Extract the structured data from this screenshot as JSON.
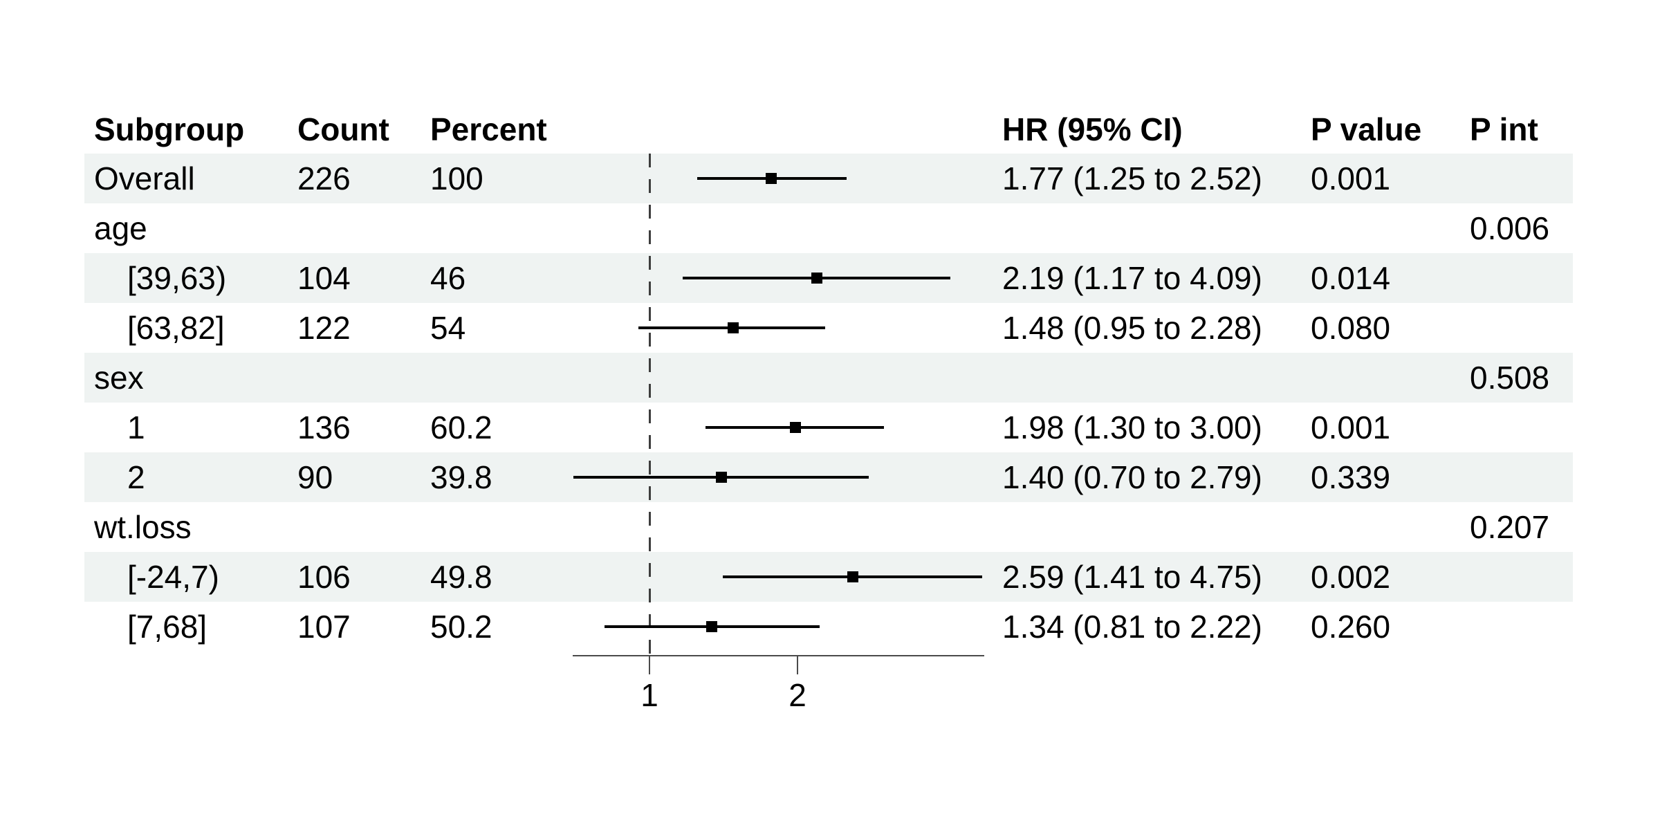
{
  "header": {
    "subgroup": "Subgroup",
    "count": "Count",
    "percent": "Percent",
    "hr_ci": "HR (95% CI)",
    "p_value": "P value",
    "p_int": "P int"
  },
  "colors": {
    "stripe": "#eff3f2",
    "text": "#000000",
    "ci": "#000000",
    "marker": "#000000",
    "axis": "#4a4a4a",
    "ref_line": "#3d3d3d",
    "background": "#ffffff"
  },
  "chart_data": {
    "type": "scatter",
    "variant": "forest_plot",
    "title": "",
    "x_axis": {
      "scale": "log2",
      "ticks": [
        1,
        2
      ],
      "tick_labels": [
        "1",
        "2"
      ],
      "range": [
        0.7,
        4.8
      ],
      "ref_line": 1
    },
    "rows": [
      {
        "subgroup": "Overall",
        "indent": false,
        "stripe": true,
        "count": "226",
        "percent": "100",
        "est": 1.77,
        "lo": 1.25,
        "hi": 2.52,
        "hr_ci": "1.77 (1.25 to 2.52)",
        "p_value": "0.001",
        "p_int": ""
      },
      {
        "subgroup": "age",
        "indent": false,
        "stripe": false,
        "count": "",
        "percent": "",
        "est": null,
        "lo": null,
        "hi": null,
        "hr_ci": "",
        "p_value": "",
        "p_int": "0.006"
      },
      {
        "subgroup": "[39,63)",
        "indent": true,
        "stripe": true,
        "count": "104",
        "percent": "46",
        "est": 2.19,
        "lo": 1.17,
        "hi": 4.09,
        "hr_ci": "2.19 (1.17 to 4.09)",
        "p_value": "0.014",
        "p_int": ""
      },
      {
        "subgroup": "[63,82]",
        "indent": true,
        "stripe": false,
        "count": "122",
        "percent": "54",
        "est": 1.48,
        "lo": 0.95,
        "hi": 2.28,
        "hr_ci": "1.48 (0.95 to 2.28)",
        "p_value": "0.080",
        "p_int": ""
      },
      {
        "subgroup": "sex",
        "indent": false,
        "stripe": true,
        "count": "",
        "percent": "",
        "est": null,
        "lo": null,
        "hi": null,
        "hr_ci": "",
        "p_value": "",
        "p_int": "0.508"
      },
      {
        "subgroup": "1",
        "indent": true,
        "stripe": false,
        "count": "136",
        "percent": "60.2",
        "est": 1.98,
        "lo": 1.3,
        "hi": 3.0,
        "hr_ci": "1.98 (1.30 to 3.00)",
        "p_value": "0.001",
        "p_int": ""
      },
      {
        "subgroup": "2",
        "indent": true,
        "stripe": true,
        "count": "90",
        "percent": "39.8",
        "est": 1.4,
        "lo": 0.7,
        "hi": 2.79,
        "hr_ci": "1.40 (0.70 to 2.79)",
        "p_value": "0.339",
        "p_int": ""
      },
      {
        "subgroup": "wt.loss",
        "indent": false,
        "stripe": false,
        "count": "",
        "percent": "",
        "est": null,
        "lo": null,
        "hi": null,
        "hr_ci": "",
        "p_value": "",
        "p_int": "0.207"
      },
      {
        "subgroup": "[-24,7)",
        "indent": true,
        "stripe": true,
        "count": "106",
        "percent": "49.8",
        "est": 2.59,
        "lo": 1.41,
        "hi": 4.75,
        "hr_ci": "2.59 (1.41 to 4.75)",
        "p_value": "0.002",
        "p_int": ""
      },
      {
        "subgroup": "[7,68]",
        "indent": true,
        "stripe": false,
        "count": "107",
        "percent": "50.2",
        "est": 1.34,
        "lo": 0.81,
        "hi": 2.22,
        "hr_ci": "1.34 (0.81 to 2.22)",
        "p_value": "0.260",
        "p_int": ""
      }
    ]
  }
}
